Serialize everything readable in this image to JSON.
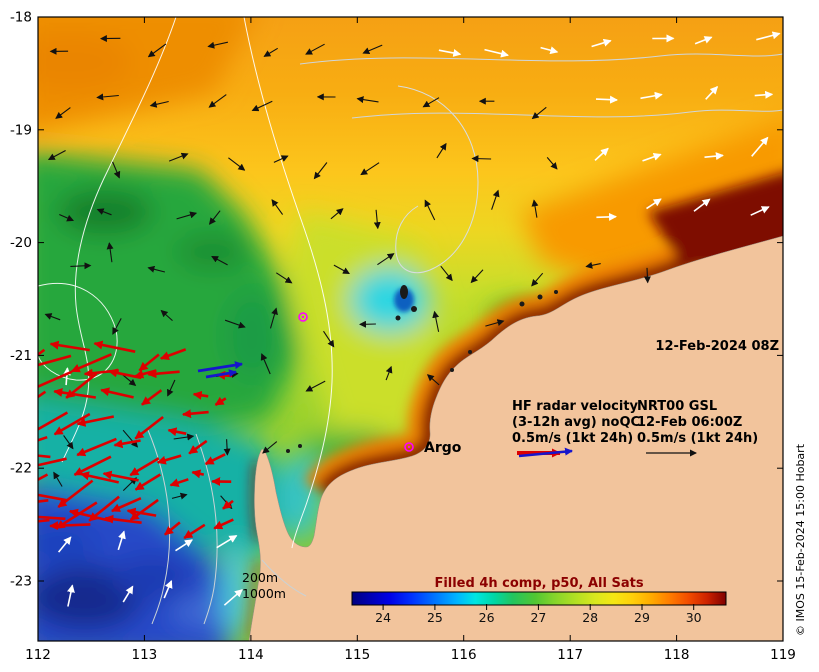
{
  "figure": {
    "datetime_label": "12-Feb-2024 08Z",
    "copyright": "© IMOS 15-Feb-2024 15:00 Hobart"
  },
  "axes": {
    "x_ticks": [
      "112",
      "113",
      "114",
      "115",
      "116",
      "117",
      "118",
      "119"
    ],
    "y_ticks": [
      "-18",
      "-19",
      "-20",
      "-21",
      "-22",
      "-23"
    ]
  },
  "hf_legend": {
    "col_a": [
      "HF radar velocity",
      "(3-12h avg) noQC",
      "0.5m/s (1kt 24h)"
    ],
    "col_b": [
      "NRT00 GSL",
      "12-Feb 06:00Z",
      "0.5m/s (1kt 24h)"
    ]
  },
  "markers": {
    "argo_label": "Argo"
  },
  "depth_labels": {
    "d200": "200m",
    "d1000": "1000m"
  },
  "colorbar": {
    "title": "Filled 4h comp, p50, All Sats",
    "title_color": "#8b0000",
    "ticks": [
      "24",
      "25",
      "26",
      "27",
      "28",
      "29",
      "30"
    ]
  },
  "map": {
    "extent": {
      "lon_min": 112,
      "lon_max": 119,
      "lat_min": -23.5,
      "lat_max": -18
    },
    "colors": {
      "land": "#f2c49c",
      "hf_arrows": "#dd0000",
      "argo_marker": "#ff00ff",
      "current_arrow_black": "#111111",
      "current_arrow_white": "#ffffff",
      "radial_arrow_blue": "#1616cc"
    }
  }
}
